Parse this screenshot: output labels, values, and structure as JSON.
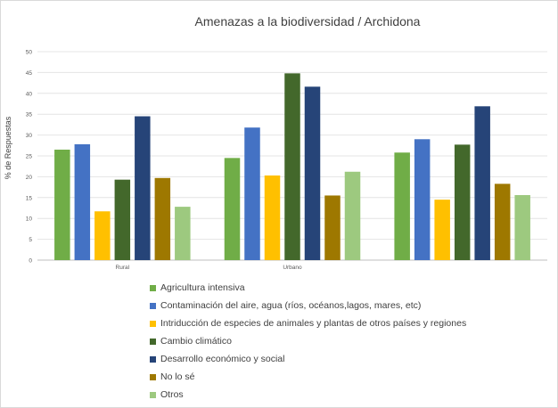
{
  "chart_data": {
    "type": "bar",
    "title": "Amenazas a la biodiversidad / Archidona",
    "xlabel": "",
    "ylabel": "% de Respuestas",
    "ylim": [
      0,
      50
    ],
    "yticks": [
      "0",
      "5",
      "10",
      "15",
      "20",
      "25",
      "30",
      "35",
      "40",
      "45",
      "50"
    ],
    "categories": [
      "Rural",
      "Urbano",
      ""
    ],
    "grid": true,
    "legend_position": "bottom",
    "series": [
      {
        "name": "Agricultura intensiva",
        "color": "#70ad47",
        "values": [
          26.5,
          24.5,
          25.8
        ]
      },
      {
        "name": "Contaminación del aire, agua (ríos, océanos,lagos, mares, etc)",
        "color": "#4472c4",
        "values": [
          27.8,
          31.8,
          29.0
        ]
      },
      {
        "name": "Intriducción de especies de animales y plantas de otros países y regiones",
        "color": "#ffc000",
        "values": [
          11.7,
          20.3,
          14.5
        ]
      },
      {
        "name": "Cambio climático",
        "color": "#43682b",
        "values": [
          19.3,
          44.8,
          27.7
        ]
      },
      {
        "name": "Desarrollo económico y social",
        "color": "#264478",
        "values": [
          34.5,
          41.6,
          36.9
        ]
      },
      {
        "name": "No lo sé",
        "color": "#9e7800",
        "values": [
          19.7,
          15.5,
          18.3
        ]
      },
      {
        "name": "Otros",
        "color": "#9dc97f",
        "values": [
          12.8,
          21.2,
          15.6
        ]
      }
    ]
  }
}
